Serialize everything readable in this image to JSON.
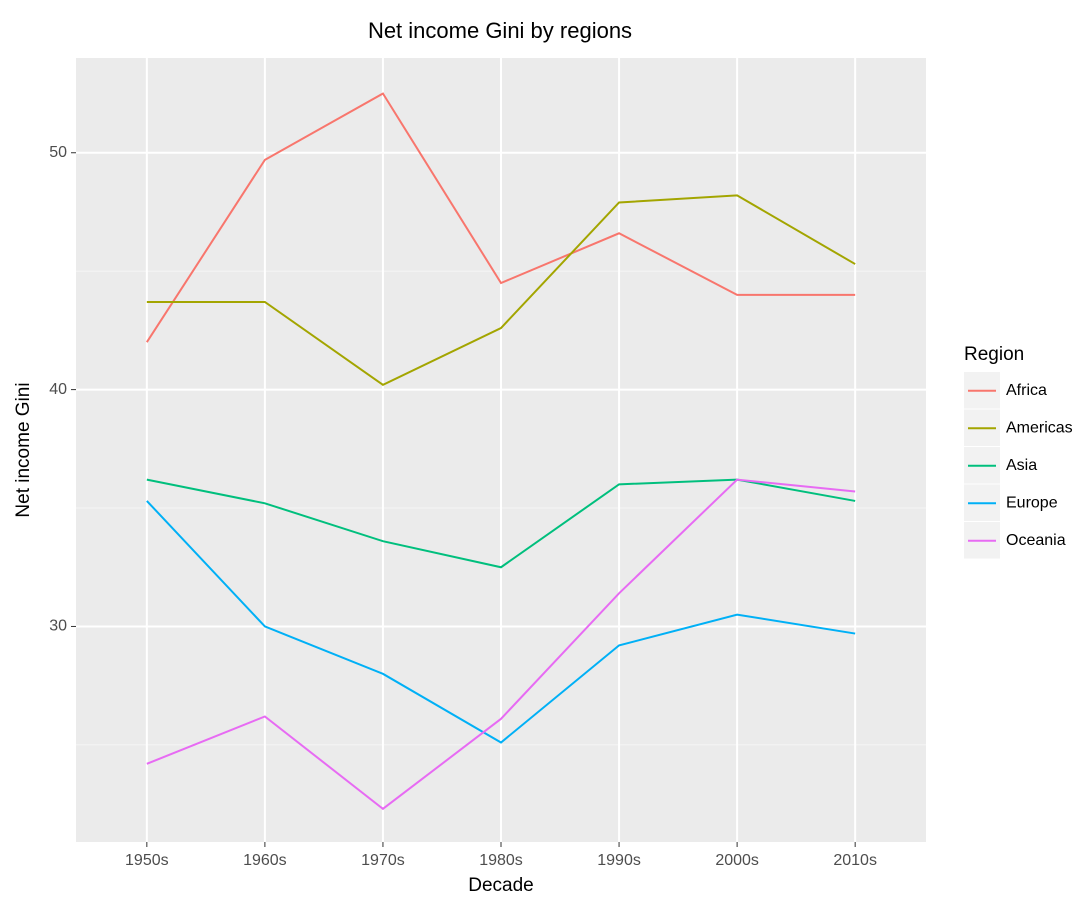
{
  "chart_data": {
    "type": "line",
    "title": "Net income Gini by regions",
    "x_label": "Decade",
    "y_label": "Net income Gini",
    "legend_title": "Region",
    "legend_position": "right",
    "categories": [
      "1950s",
      "1960s",
      "1970s",
      "1980s",
      "1990s",
      "2000s",
      "2010s"
    ],
    "series": [
      {
        "name": "Africa",
        "color": "#F8766D",
        "values": [
          42.0,
          49.7,
          52.5,
          44.5,
          46.6,
          44.0,
          44.0
        ]
      },
      {
        "name": "Americas",
        "color": "#A3A500",
        "values": [
          43.7,
          43.7,
          40.2,
          42.6,
          47.9,
          48.2,
          45.3
        ]
      },
      {
        "name": "Asia",
        "color": "#00BF7D",
        "values": [
          36.2,
          35.2,
          33.6,
          32.5,
          36.0,
          36.2,
          35.3
        ]
      },
      {
        "name": "Europe",
        "color": "#00B0F6",
        "values": [
          35.3,
          30.0,
          28.0,
          25.1,
          29.2,
          30.5,
          29.7
        ]
      },
      {
        "name": "Oceania",
        "color": "#E76BF3",
        "values": [
          24.2,
          26.2,
          22.3,
          26.1,
          31.4,
          36.2,
          35.7
        ]
      }
    ],
    "ylim": [
      20.9,
      54.0
    ],
    "yticks": [
      30,
      40,
      50
    ],
    "minor_yticks": [
      25,
      35,
      45
    ],
    "grid": true
  }
}
